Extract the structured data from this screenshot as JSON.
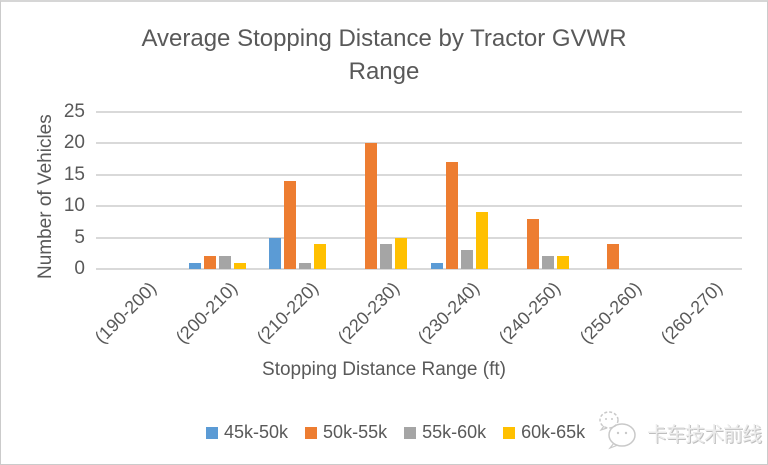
{
  "chart_data": {
    "type": "bar",
    "title": "Average Stopping Distance by Tractor GVWR Range",
    "xlabel": "Stopping Distance Range (ft)",
    "ylabel": "Number of Vehicles",
    "categories": [
      "(190-200)",
      "(200-210)",
      "(210-220)",
      "(220-230)",
      "(230-240)",
      "(240-250)",
      "(250-260)",
      "(260-270)"
    ],
    "series": [
      {
        "name": "45k-50k",
        "color": "#5B9BD5",
        "values": [
          0,
          1,
          5,
          0,
          1,
          0,
          0,
          0
        ]
      },
      {
        "name": "50k-55k",
        "color": "#ED7D31",
        "values": [
          0,
          2,
          14,
          20,
          17,
          8,
          4,
          0
        ]
      },
      {
        "name": "55k-60k",
        "color": "#A5A5A5",
        "values": [
          0,
          2,
          1,
          4,
          3,
          2,
          0,
          0
        ]
      },
      {
        "name": "60k-65k",
        "color": "#FFC000",
        "values": [
          0,
          1,
          4,
          5,
          9,
          2,
          0,
          0
        ]
      }
    ],
    "ylim": [
      0,
      25
    ],
    "yticks": [
      0,
      5,
      10,
      15,
      20,
      25
    ],
    "grid": true,
    "legend_position": "bottom"
  },
  "watermark": {
    "text": "卡车技术前线",
    "icon": "wechat-logo-icon"
  },
  "colors": {
    "text": "#595959",
    "gridline": "#D9D9D9",
    "background": "#FFFFFF",
    "frame_border": "#CBCBCB"
  }
}
